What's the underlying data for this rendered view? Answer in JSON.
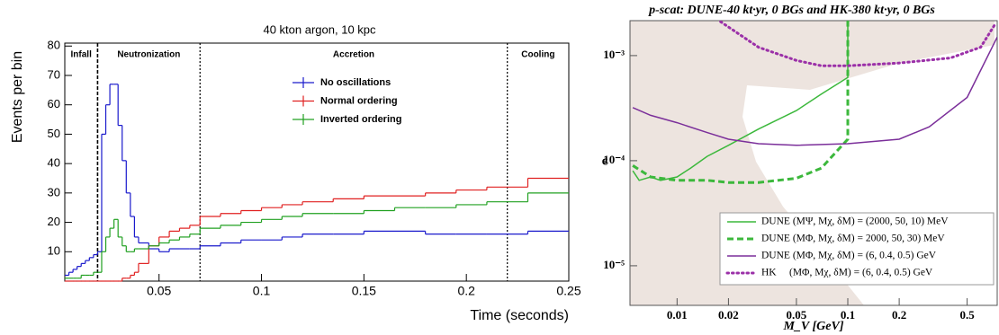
{
  "chart_data": [
    {
      "type": "histogram",
      "title": "40 kton argon, 10 kpc",
      "x_label": "Time (seconds)",
      "y_label": "Events per bin",
      "bins": [
        0.004,
        0.006,
        0.008,
        0.01,
        0.012,
        0.014,
        0.016,
        0.018,
        0.02,
        0.022,
        0.024,
        0.026,
        0.028,
        0.03,
        0.032,
        0.034,
        0.036,
        0.038,
        0.04,
        0.045,
        0.05,
        0.055,
        0.06,
        0.065,
        0.07,
        0.08,
        0.09,
        0.1,
        0.11,
        0.12,
        0.135,
        0.15,
        0.165,
        0.18,
        0.195,
        0.21,
        0.23,
        0.25
      ],
      "series": [
        {
          "name": "No oscillations",
          "color": "#1a1acc",
          "values": [
            2,
            3,
            4,
            5,
            6,
            7,
            8,
            9,
            10,
            50,
            60,
            67,
            67,
            53,
            41,
            30,
            22,
            15,
            13,
            11,
            10,
            11,
            11,
            11,
            12,
            13,
            14,
            14,
            15,
            16,
            16,
            17,
            17,
            16,
            16,
            16,
            17
          ]
        },
        {
          "name": "Normal ordering",
          "color": "#e02020",
          "values": [
            0,
            0,
            0,
            0,
            0,
            0,
            0,
            0,
            0,
            0,
            0,
            0,
            0,
            0,
            1,
            1,
            2,
            3,
            6,
            12,
            15,
            17,
            18,
            19,
            22,
            23,
            24,
            25,
            26,
            27,
            28,
            29,
            29,
            30,
            31,
            32,
            35
          ]
        },
        {
          "name": "Inverted ordering",
          "color": "#20a020",
          "values": [
            1,
            1,
            1,
            1,
            2,
            2,
            2,
            3,
            3,
            10,
            15,
            18,
            21,
            15,
            12,
            10,
            10,
            11,
            11,
            12,
            13,
            14,
            15,
            16,
            18,
            19,
            20,
            21,
            22,
            23,
            23,
            24,
            25,
            25,
            26,
            27,
            30
          ]
        }
      ],
      "xlim": [
        0.004,
        0.25
      ],
      "ylim": [
        0,
        81
      ],
      "xticks": [
        0.05,
        0.1,
        0.15,
        0.2,
        0.25
      ],
      "yticks": [
        10,
        20,
        30,
        40,
        50,
        60,
        70,
        80
      ],
      "vlines": [
        0.02,
        0.07,
        0.22
      ],
      "annotations": [
        "Infall",
        "Neutronization",
        "Accretion",
        "Cooling"
      ]
    },
    {
      "type": "line",
      "title": "p-scat: DUNE-40 kt·yr, 0 BGs and HK-380 kt·yr, 0 BGs",
      "x_label": "M_V [GeV]",
      "y_label": "ϵ",
      "xlog": true,
      "ylog": true,
      "xlim": [
        0.0053,
        0.75
      ],
      "ylim": [
        4.2e-06,
        0.00215
      ],
      "xticks": [
        0.01,
        0.02,
        0.05,
        0.1,
        0.2,
        0.5
      ],
      "yticks": [
        {
          "value": 1e-05,
          "label": "10⁻⁵"
        },
        {
          "value": 0.0001,
          "label": "10⁻⁴"
        },
        {
          "value": 0.001,
          "label": "10⁻³"
        }
      ],
      "series": [
        {
          "name": "DUNE (MΨ, Mχ, δM) = (2000, 50, 10) MeV",
          "color": "#3cb83c",
          "dash": "solid",
          "x": [
            0.0055,
            0.006,
            0.007,
            0.008,
            0.01,
            0.012,
            0.015,
            0.02,
            0.03,
            0.05,
            0.07,
            0.1,
            0.1
          ],
          "values": [
            8e-05,
            6.5e-05,
            7e-05,
            6.5e-05,
            7e-05,
            8.5e-05,
            0.00011,
            0.00014,
            0.0002,
            0.0003,
            0.00043,
            0.00062,
            0.00215
          ]
        },
        {
          "name": "DUNE (MΦ, Mχ, δM) = 2000, 50, 30) MeV",
          "color": "#3cb83c",
          "dash": "dashed",
          "x": [
            0.0055,
            0.007,
            0.01,
            0.015,
            0.02,
            0.03,
            0.05,
            0.07,
            0.1,
            0.1
          ],
          "values": [
            9e-05,
            7e-05,
            6.5e-05,
            6.5e-05,
            6.2e-05,
            6.2e-05,
            6.8e-05,
            8.5e-05,
            0.00016,
            0.00215
          ]
        },
        {
          "name": "DUNE (MΦ, Mχ, δM) = (6, 0.4, 0.5) GeV",
          "color": "#7b2f9a",
          "dash": "solid",
          "x": [
            0.0055,
            0.007,
            0.01,
            0.015,
            0.02,
            0.03,
            0.05,
            0.1,
            0.2,
            0.3,
            0.5,
            0.75
          ],
          "values": [
            0.00032,
            0.00027,
            0.00023,
            0.000185,
            0.00016,
            0.000145,
            0.00014,
            0.000145,
            0.00016,
            0.00021,
            0.0004,
            0.0015
          ]
        },
        {
          "name": "HK     (MΦ, Mχ, δM) = (6, 0.4, 0.5) GeV",
          "color": "#9b30a8",
          "dash": "dotted",
          "x": [
            0.018,
            0.03,
            0.05,
            0.07,
            0.1,
            0.2,
            0.4,
            0.6,
            0.73
          ],
          "values": [
            0.0021,
            0.0012,
            0.0009,
            0.0008,
            0.0008,
            0.00085,
            0.00095,
            0.0012,
            0.002
          ]
        }
      ]
    }
  ]
}
